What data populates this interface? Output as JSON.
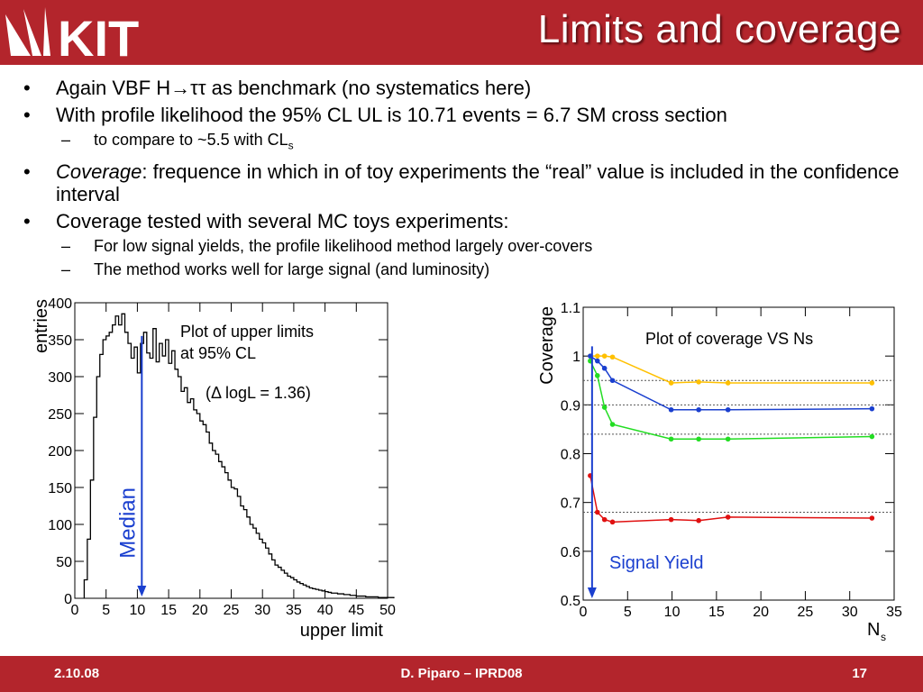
{
  "slide": {
    "logo": "KIT",
    "title": "Limits and coverage",
    "bullets": [
      {
        "level": 1,
        "parts": [
          "Again VBF H→ττ as benchmark (no systematics here)"
        ]
      },
      {
        "level": 1,
        "parts": [
          "With profile likelihood the 95% CL UL is 10.71 events = 6.7 SM cross section"
        ]
      },
      {
        "level": 2,
        "parts": [
          "to compare to ~5.5 with CL"
        ],
        "sub": "s"
      },
      {
        "level": 1,
        "italic": "Coverage",
        "parts": [
          ": frequence in which in of toy experiments the “real” value is included in the confidence interval"
        ]
      },
      {
        "level": 1,
        "parts": [
          "Coverage tested with several MC toys experiments:"
        ]
      },
      {
        "level": 2,
        "parts": [
          "For low signal yields, the profile likelihood method largely over-covers"
        ]
      },
      {
        "level": 2,
        "parts": [
          "The method works well for large signal (and luminosity)"
        ]
      }
    ]
  },
  "footer": {
    "date": "2.10.08",
    "author": "D. Piparo – IPRD08",
    "page": "17"
  },
  "chart_data": [
    {
      "type": "bar",
      "xlabel": "upper limit",
      "ylabel": "entries",
      "xlim": [
        0,
        50
      ],
      "ylim": [
        0,
        400
      ],
      "xticks": [
        0,
        5,
        10,
        15,
        20,
        25,
        30,
        35,
        40,
        45,
        50
      ],
      "yticks": [
        0,
        50,
        100,
        150,
        200,
        250,
        300,
        350,
        400
      ],
      "annotations": [
        "Plot of upper limits",
        "at 95% CL",
        "(Δ logL = 1.36)",
        "Median"
      ],
      "median": 10.71,
      "line_color": "#000000",
      "median_color": "#1a3fcf",
      "bin_width": 0.5,
      "x_start": 1.5,
      "values": [
        25,
        80,
        160,
        245,
        300,
        330,
        350,
        355,
        360,
        370,
        382,
        370,
        385,
        360,
        345,
        325,
        340,
        305,
        345,
        360,
        332,
        325,
        365,
        320,
        345,
        328,
        350,
        318,
        335,
        310,
        300,
        280,
        285,
        265,
        270,
        255,
        250,
        240,
        235,
        225,
        210,
        200,
        195,
        185,
        178,
        170,
        160,
        150,
        148,
        138,
        125,
        120,
        110,
        100,
        95,
        88,
        80,
        75,
        68,
        60,
        52,
        45,
        42,
        38,
        34,
        30,
        28,
        25,
        22,
        20,
        18,
        16,
        14,
        13,
        12,
        11,
        10,
        9,
        8,
        7,
        7,
        6,
        6,
        5,
        5,
        4,
        4,
        3,
        3,
        3,
        2,
        2,
        2,
        2,
        1,
        1,
        1,
        1,
        1
      ]
    },
    {
      "type": "line",
      "xlabel": "N",
      "xlabel_sub": "s",
      "ylabel": "Coverage",
      "xlim": [
        0,
        35
      ],
      "ylim": [
        0.5,
        1.1
      ],
      "xticks": [
        0,
        5,
        10,
        15,
        20,
        25,
        30,
        35
      ],
      "yticks": [
        0.5,
        0.6,
        0.7,
        0.8,
        0.9,
        1,
        1.1
      ],
      "yticklabels": [
        "0.5",
        "0.6",
        "0.7",
        "0.8",
        "0.9",
        "1",
        "1.1"
      ],
      "annotations": [
        "Plot of coverage VS Ns",
        "Signal Yield"
      ],
      "signal_line_x": 1,
      "dashed_levels": [
        0.95,
        0.9,
        0.84,
        0.68
      ],
      "series": [
        {
          "color": "#ffc000",
          "x": [
            0.8,
            1.6,
            2.4,
            3.3,
            9.9,
            13,
            16.3,
            32.5
          ],
          "y": [
            1.0,
            1.0,
            1.0,
            0.998,
            0.945,
            0.947,
            0.945,
            0.945
          ]
        },
        {
          "color": "#1a3fcf",
          "x": [
            0.8,
            1.6,
            2.4,
            3.3,
            9.9,
            13,
            16.3,
            32.5
          ],
          "y": [
            1.0,
            0.99,
            0.975,
            0.95,
            0.89,
            0.89,
            0.89,
            0.892
          ]
        },
        {
          "color": "#22dd22",
          "x": [
            0.8,
            1.6,
            2.4,
            3.3,
            9.9,
            13,
            16.3,
            32.5
          ],
          "y": [
            0.99,
            0.96,
            0.895,
            0.86,
            0.83,
            0.83,
            0.83,
            0.835
          ]
        },
        {
          "color": "#e01010",
          "x": [
            0.8,
            1.6,
            2.4,
            3.3,
            9.9,
            13,
            16.3,
            32.5
          ],
          "y": [
            0.755,
            0.68,
            0.665,
            0.66,
            0.665,
            0.663,
            0.67,
            0.668
          ]
        }
      ]
    }
  ]
}
